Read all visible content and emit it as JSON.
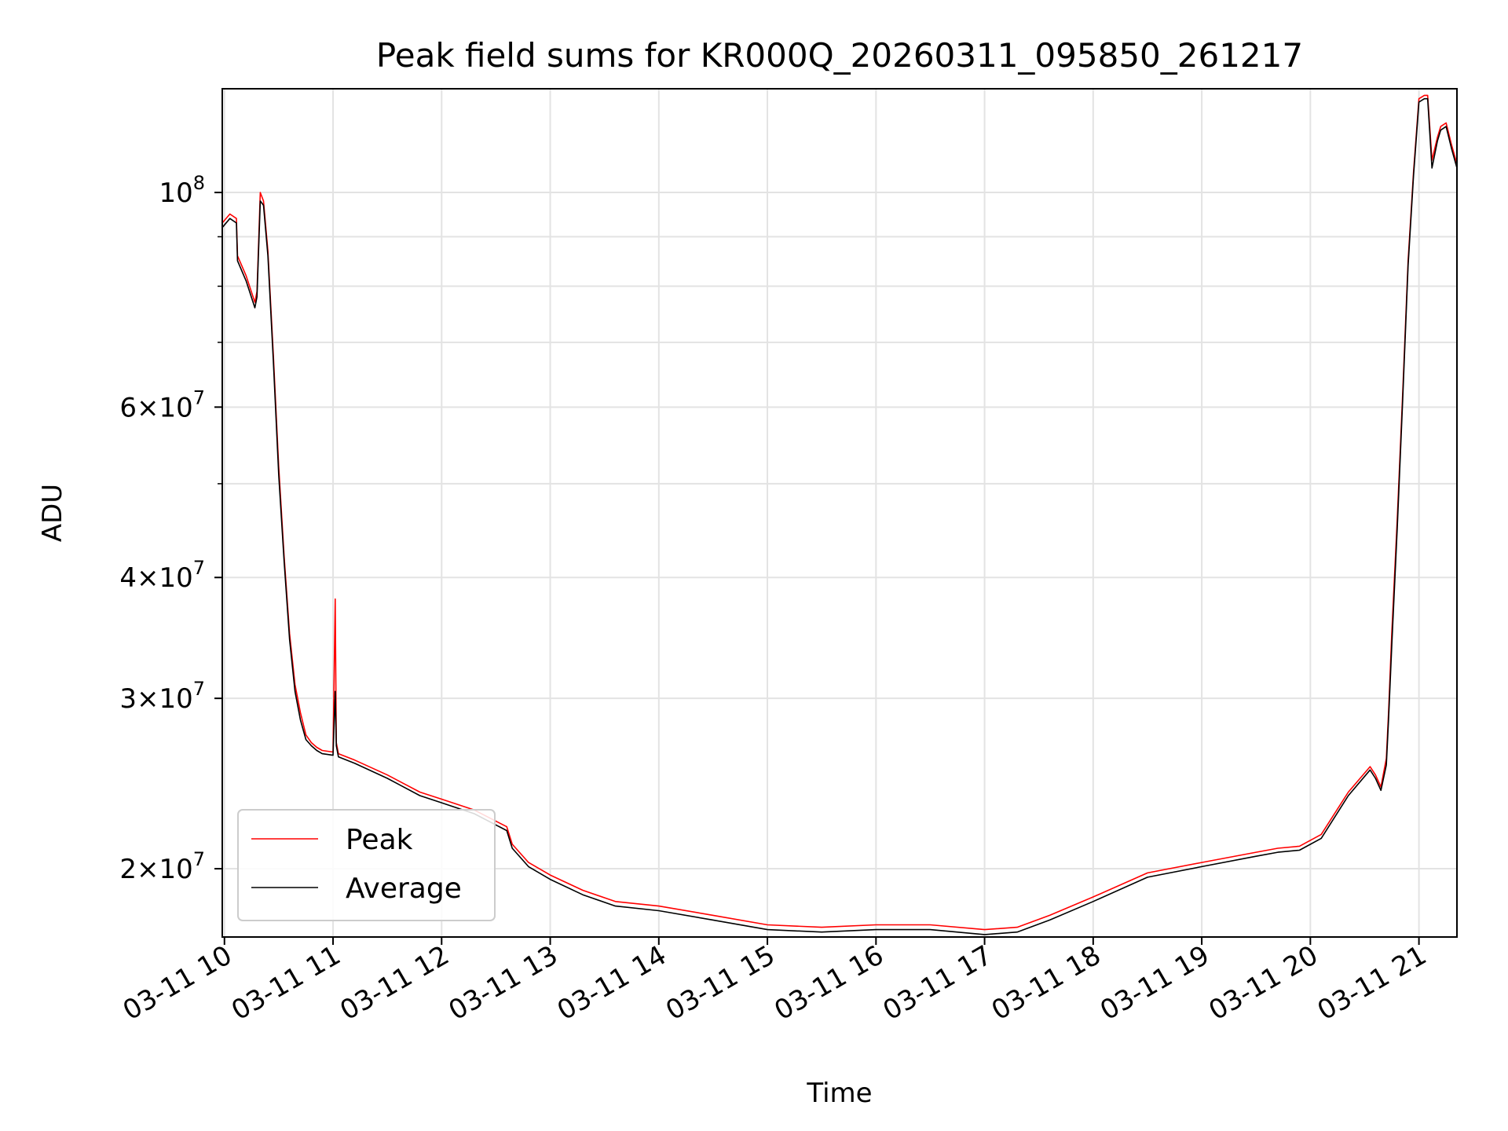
{
  "chart_data": {
    "type": "line",
    "title": "Peak field sums for KR000Q_20260311_095850_261217",
    "xlabel": "Time",
    "ylabel": "ADU",
    "y_scale": "log",
    "grid": true,
    "legend_position": "lower-left",
    "x_unit": "hours (time of day, 2026-03-11)",
    "xlim": [
      9.98,
      21.35
    ],
    "ylim": [
      17000000,
      128000000
    ],
    "x_ticks": [
      10,
      11,
      12,
      13,
      14,
      15,
      16,
      17,
      18,
      19,
      20,
      21
    ],
    "x_tick_labels": [
      "03-11 10",
      "03-11 11",
      "03-11 12",
      "03-11 13",
      "03-11 14",
      "03-11 15",
      "03-11 16",
      "03-11 17",
      "03-11 18",
      "03-11 19",
      "03-11 20",
      "03-11 21"
    ],
    "y_major_ticks": [
      {
        "value": 20000000,
        "mantissa": "2",
        "exp": "7"
      },
      {
        "value": 30000000,
        "mantissa": "3",
        "exp": "7"
      },
      {
        "value": 40000000,
        "mantissa": "4",
        "exp": "7"
      },
      {
        "value": 60000000,
        "mantissa": "6",
        "exp": "7"
      },
      {
        "value": 100000000,
        "mantissa": "",
        "exp": "8"
      }
    ],
    "y_minor_ticks": [
      50000000,
      70000000,
      80000000,
      90000000
    ],
    "series": [
      {
        "name": "Peak",
        "color": "#ff0000",
        "x": [
          9.98,
          10.05,
          10.11,
          10.12,
          10.2,
          10.28,
          10.3,
          10.33,
          10.36,
          10.4,
          10.45,
          10.5,
          10.55,
          10.6,
          10.65,
          10.7,
          10.75,
          10.8,
          10.85,
          10.9,
          11.0,
          11.02,
          11.03,
          11.05,
          11.2,
          11.5,
          11.8,
          12.0,
          12.3,
          12.6,
          12.65,
          12.8,
          13.0,
          13.3,
          13.6,
          14.0,
          14.5,
          15.0,
          15.5,
          16.0,
          16.5,
          17.0,
          17.3,
          17.6,
          18.0,
          18.5,
          19.0,
          19.5,
          19.7,
          19.9,
          20.1,
          20.35,
          20.55,
          20.6,
          20.65,
          20.7,
          20.72,
          20.75,
          20.8,
          20.85,
          20.9,
          20.95,
          21.0,
          21.05,
          21.08,
          21.12,
          21.17,
          21.2,
          21.25,
          21.3,
          21.35
        ],
        "y": [
          93000000,
          95000000,
          94000000,
          86000000,
          82000000,
          77000000,
          79000000,
          100000000,
          98000000,
          87000000,
          68000000,
          52000000,
          42000000,
          35000000,
          31000000,
          29000000,
          27500000,
          27000000,
          26700000,
          26500000,
          26400000,
          38000000,
          27000000,
          26300000,
          25900000,
          25000000,
          24000000,
          23600000,
          23000000,
          22100000,
          21200000,
          20300000,
          19700000,
          19000000,
          18500000,
          18300000,
          17900000,
          17500000,
          17400000,
          17500000,
          17500000,
          17300000,
          17400000,
          17900000,
          18700000,
          19800000,
          20300000,
          20800000,
          21000000,
          21100000,
          21700000,
          24000000,
          25500000,
          25000000,
          24300000,
          26000000,
          29000000,
          35000000,
          46000000,
          62000000,
          85000000,
          105000000,
          125000000,
          126000000,
          126000000,
          108000000,
          114000000,
          117000000,
          118000000,
          112000000,
          107000000
        ]
      },
      {
        "name": "Average",
        "color": "#000000",
        "x": [
          9.98,
          10.05,
          10.11,
          10.12,
          10.2,
          10.28,
          10.3,
          10.33,
          10.36,
          10.4,
          10.45,
          10.5,
          10.55,
          10.6,
          10.65,
          10.7,
          10.75,
          10.8,
          10.85,
          10.9,
          11.0,
          11.02,
          11.03,
          11.05,
          11.2,
          11.5,
          11.8,
          12.0,
          12.3,
          12.6,
          12.65,
          12.8,
          13.0,
          13.3,
          13.6,
          14.0,
          14.5,
          15.0,
          15.5,
          16.0,
          16.5,
          17.0,
          17.3,
          17.6,
          18.0,
          18.5,
          19.0,
          19.5,
          19.7,
          19.9,
          20.1,
          20.35,
          20.55,
          20.6,
          20.65,
          20.7,
          20.72,
          20.75,
          20.8,
          20.85,
          20.9,
          20.95,
          21.0,
          21.05,
          21.08,
          21.12,
          21.17,
          21.2,
          21.25,
          21.3,
          21.35
        ],
        "y": [
          92000000,
          94000000,
          93000000,
          85000000,
          81000000,
          76000000,
          78000000,
          98000000,
          97000000,
          86000000,
          67000000,
          51000000,
          41500000,
          34500000,
          30500000,
          28500000,
          27200000,
          26800000,
          26500000,
          26300000,
          26200000,
          30500000,
          26800000,
          26100000,
          25700000,
          24800000,
          23800000,
          23400000,
          22800000,
          21900000,
          21000000,
          20100000,
          19500000,
          18800000,
          18300000,
          18100000,
          17700000,
          17300000,
          17200000,
          17300000,
          17300000,
          17100000,
          17200000,
          17700000,
          18500000,
          19600000,
          20100000,
          20600000,
          20800000,
          20900000,
          21500000,
          23800000,
          25300000,
          24800000,
          24100000,
          25600000,
          28500000,
          34000000,
          45000000,
          61000000,
          84000000,
          104000000,
          124000000,
          125000000,
          125000000,
          106000000,
          113000000,
          116000000,
          117000000,
          111000000,
          106000000
        ]
      }
    ]
  }
}
